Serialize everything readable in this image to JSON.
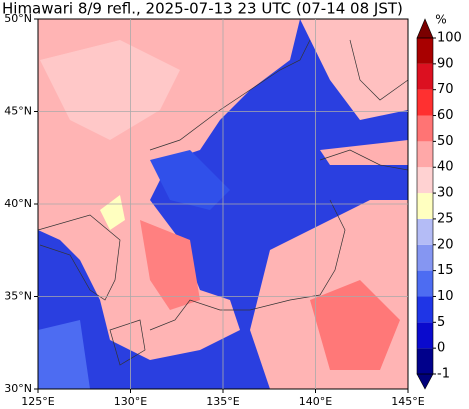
{
  "title": "Himawari 8/9 refl., 2025-07-13 23 UTC (07-14 08 JST)",
  "map": {
    "xlim": [
      125,
      145
    ],
    "ylim": [
      30,
      50
    ],
    "xticks": [
      {
        "value": 125,
        "label": "125°E"
      },
      {
        "value": 130,
        "label": "130°E"
      },
      {
        "value": 135,
        "label": "135°E"
      },
      {
        "value": 140,
        "label": "140°E"
      },
      {
        "value": 145,
        "label": "145°E"
      }
    ],
    "yticks": [
      {
        "value": 30,
        "label": "30°N"
      },
      {
        "value": 35,
        "label": "35°N"
      },
      {
        "value": 40,
        "label": "40°N"
      },
      {
        "value": 45,
        "label": "45°N"
      },
      {
        "value": 50,
        "label": "50°N"
      }
    ],
    "grid": true
  },
  "colorbar": {
    "label": "%",
    "ticks": [
      -1,
      0,
      5,
      10,
      15,
      20,
      25,
      30,
      40,
      50,
      60,
      70,
      90,
      100
    ],
    "colors": [
      "#00008b",
      "#0a0acd",
      "#1f35e6",
      "#4d6cf2",
      "#8596f2",
      "#b4bcf6",
      "#ffffc0",
      "#ffd2d2",
      "#ffa8a8",
      "#ff7474",
      "#ff3030",
      "#dc1020",
      "#a80000"
    ],
    "extend_colors": [
      "#00007a",
      "#7a0000"
    ]
  }
}
